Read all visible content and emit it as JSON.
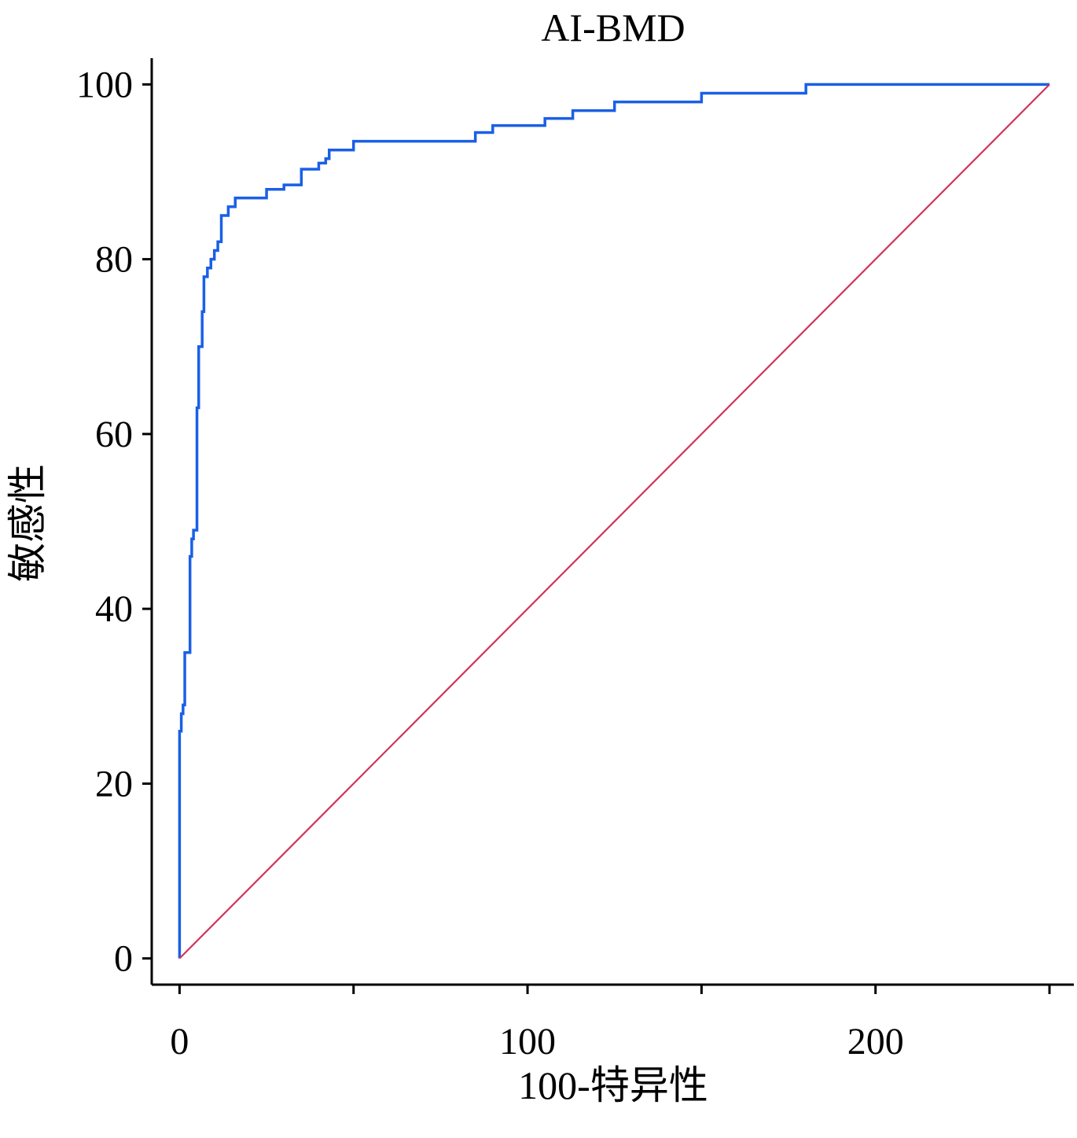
{
  "chart_data": {
    "type": "line",
    "title": "AI-BMD",
    "xlabel": "100-特异性",
    "ylabel": "敏感性",
    "xlim": [
      -8,
      257
    ],
    "ylim": [
      -3,
      103
    ],
    "x_tick_labels": [
      {
        "value": 0,
        "label": "0"
      },
      {
        "value": 100,
        "label": "100"
      },
      {
        "value": 200,
        "label": "200"
      }
    ],
    "x_ticks_unlabeled": [
      50,
      150,
      250
    ],
    "y_tick_labels": [
      {
        "value": 0,
        "label": "0"
      },
      {
        "value": 20,
        "label": "20"
      },
      {
        "value": 40,
        "label": "40"
      },
      {
        "value": 60,
        "label": "60"
      },
      {
        "value": 80,
        "label": "80"
      },
      {
        "value": 100,
        "label": "100"
      }
    ],
    "grid": false,
    "series": [
      {
        "color": "#1a5fe6",
        "x": [
          0,
          0,
          0.5,
          0.5,
          1,
          1,
          1.5,
          1.5,
          2,
          2,
          3,
          3,
          3.5,
          3.5,
          4,
          4,
          5,
          5,
          5.5,
          5.5,
          6,
          6,
          6.5,
          6.5,
          7,
          7,
          8,
          8,
          9,
          9,
          10,
          10,
          11,
          11,
          12,
          12,
          13,
          13,
          14,
          14,
          15,
          15,
          16,
          16,
          17,
          17,
          18,
          18,
          25,
          25,
          30,
          30,
          35,
          35,
          40,
          40,
          42,
          42,
          43,
          43,
          45,
          45,
          50,
          50,
          85,
          85,
          90,
          90,
          93,
          93,
          105,
          105,
          113,
          113,
          125,
          125,
          150,
          150,
          180,
          180,
          250
        ],
        "y": [
          0,
          26,
          26,
          28,
          28,
          29,
          29,
          35,
          35,
          35,
          35,
          46,
          46,
          48,
          48,
          49,
          49,
          63,
          63,
          70,
          70,
          70,
          70,
          74,
          74,
          78,
          78,
          79,
          79,
          80,
          80,
          81,
          81,
          82,
          82,
          85,
          85,
          85,
          85,
          86,
          86,
          86,
          86,
          87,
          87,
          87,
          87,
          87,
          87,
          88,
          88,
          88.5,
          88.5,
          90.3,
          90.3,
          91,
          91,
          91.5,
          91.5,
          92.5,
          92.5,
          92.5,
          92.5,
          93.5,
          93.5,
          94.5,
          94.5,
          95.3,
          95.3,
          95.3,
          95.3,
          96.1,
          96.1,
          97,
          97,
          98,
          98,
          99,
          99,
          100,
          100
        ]
      },
      {
        "color": "#d0345a",
        "x": [
          0,
          250
        ],
        "y": [
          0,
          100
        ]
      }
    ]
  }
}
